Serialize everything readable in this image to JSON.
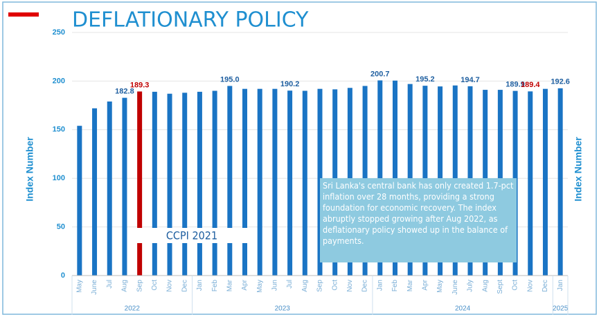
{
  "chart_data": {
    "type": "bar",
    "title": "DEFLATIONARY POLICY",
    "y_label": "Index Number",
    "y2_label": "Index Number",
    "categories": [
      "May",
      "June",
      "Jul",
      "Aug",
      "Sep",
      "Oct",
      "Nov",
      "Dec",
      "Jan",
      "Feb",
      "Mar",
      "Apr",
      "May",
      "Jun",
      "Jul",
      "Aug",
      "Sep",
      "Oct",
      "Nov",
      "Dec",
      "Jan",
      "Feb",
      "Mar",
      "Apr",
      "May",
      "June",
      "July",
      "Aug",
      "Sept",
      "Oct",
      "Nov",
      "Dec",
      "Jan"
    ],
    "groups": [
      {
        "label": "2022",
        "span": 8
      },
      {
        "label": "2023",
        "span": 12
      },
      {
        "label": "2024",
        "span": 12
      },
      {
        "label": "2025",
        "span": 1
      }
    ],
    "values": [
      154,
      172,
      179,
      182.8,
      189.3,
      189,
      187,
      188,
      189,
      190,
      195.0,
      192,
      192,
      192,
      190.2,
      190,
      192,
      191.5,
      193,
      195,
      200.7,
      200.5,
      197,
      195.2,
      194.5,
      195.5,
      194.7,
      191,
      191,
      189.9,
      189.4,
      192,
      192.6
    ],
    "value_labels": [
      null,
      null,
      null,
      "182.8",
      "189.3",
      null,
      null,
      null,
      null,
      null,
      "195.0",
      null,
      null,
      null,
      "190.2",
      null,
      null,
      null,
      null,
      null,
      "200.7",
      null,
      null,
      "195.2",
      null,
      null,
      "194.7",
      null,
      null,
      "189.9",
      "189.4",
      null,
      "192.6"
    ],
    "colors": [
      "#1a74c4",
      "#1a74c4",
      "#1a74c4",
      "#1a74c4",
      "#c00000",
      "#1a74c4",
      "#1a74c4",
      "#1a74c4",
      "#1a74c4",
      "#1a74c4",
      "#1a74c4",
      "#1a74c4",
      "#1a74c4",
      "#1a74c4",
      "#1a74c4",
      "#1a74c4",
      "#1a74c4",
      "#1a74c4",
      "#1a74c4",
      "#1a74c4",
      "#1a74c4",
      "#1a74c4",
      "#1a74c4",
      "#1a74c4",
      "#1a74c4",
      "#1a74c4",
      "#1a74c4",
      "#1a74c4",
      "#1a74c4",
      "#1a74c4",
      "#1a74c4",
      "#1a74c4",
      "#1a74c4"
    ],
    "value_label_colors": [
      "#1f5fa0",
      "#1f5fa0",
      "#1f5fa0",
      "#1f5fa0",
      "#c00000",
      "#1f5fa0",
      "#1f5fa0",
      "#1f5fa0",
      "#1f5fa0",
      "#1f5fa0",
      "#1f5fa0",
      "#1f5fa0",
      "#1f5fa0",
      "#1f5fa0",
      "#1f5fa0",
      "#1f5fa0",
      "#1f5fa0",
      "#1f5fa0",
      "#1f5fa0",
      "#1f5fa0",
      "#1f5fa0",
      "#1f5fa0",
      "#1f5fa0",
      "#1f5fa0",
      "#1f5fa0",
      "#1f5fa0",
      "#1f5fa0",
      "#1f5fa0",
      "#1f5fa0",
      "#1f5fa0",
      "#c00000",
      "#1f5fa0",
      "#1f5fa0"
    ],
    "ylim": [
      0,
      250
    ],
    "yticks": [
      0,
      50,
      100,
      150,
      200,
      250
    ],
    "grid": true,
    "series_label": "CCPI 2021",
    "annotation": "Sri Lanka's central bank has only created 1.7-pct inflation over 28 months, providing a strong foundation for economic recovery. The index abruptly stopped growing after Aug 2022, as deflationary policy showed up in the balance of payments."
  }
}
